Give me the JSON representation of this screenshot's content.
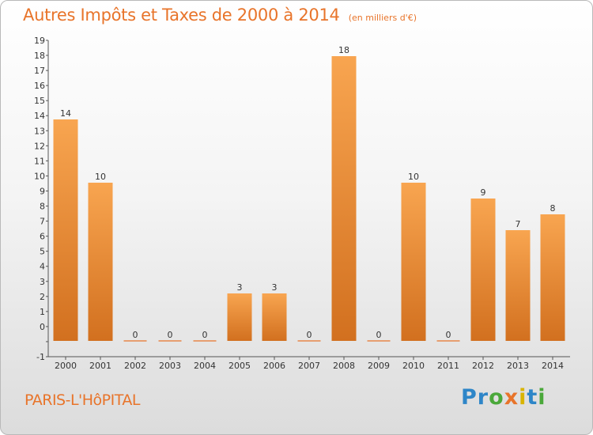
{
  "title": {
    "main": "Autres Impôts et Taxes de 2000 à 2014",
    "unit": "(en milliers d'€)"
  },
  "commune": "PARIS-L'HôPITAL",
  "logo": {
    "letters": [
      {
        "ch": "P",
        "color": "#2e86c8"
      },
      {
        "ch": "r",
        "color": "#2e86c8"
      },
      {
        "ch": "o",
        "color": "#4aa83a"
      },
      {
        "ch": "x",
        "color": "#e8742a"
      },
      {
        "ch": "i",
        "color": "#d9b400"
      },
      {
        "ch": "t",
        "color": "#2e86c8"
      },
      {
        "ch": "i",
        "color": "#4aa83a"
      }
    ]
  },
  "colors": {
    "accent": "#e8742a",
    "bar_top": "#f8a550",
    "bar_bottom": "#d2701f"
  },
  "chart_data": {
    "type": "bar",
    "categories": [
      "2000",
      "2001",
      "2002",
      "2003",
      "2004",
      "2005",
      "2006",
      "2007",
      "2008",
      "2009",
      "2010",
      "2011",
      "2012",
      "2013",
      "2014"
    ],
    "values": [
      14,
      10,
      0,
      0,
      0,
      3,
      3,
      0,
      18,
      0,
      10,
      0,
      9,
      7,
      8
    ],
    "ylim": [
      -1,
      19
    ],
    "yticks": [
      "-1",
      "",
      "0",
      "1",
      "2",
      "3",
      "4",
      "5",
      "6",
      "7",
      "8",
      "9",
      "10",
      "11",
      "12",
      "13",
      "14",
      "15",
      "16",
      "17",
      "18",
      "19"
    ],
    "grid": false
  }
}
